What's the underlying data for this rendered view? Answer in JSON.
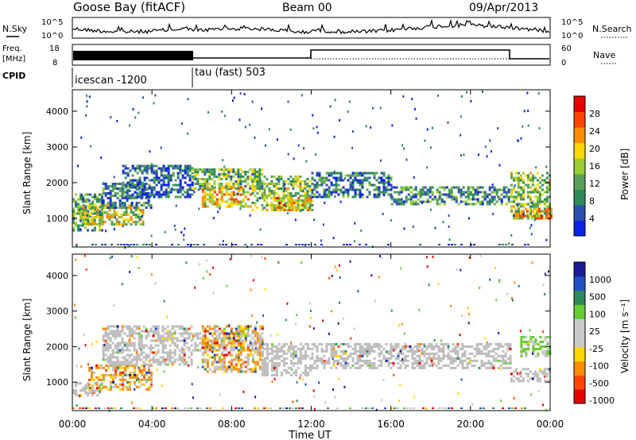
{
  "header": {
    "station": "Goose Bay (fitACF)",
    "beam": "Beam 00",
    "date": "09/Apr/2013"
  },
  "top_panels": {
    "nsky": {
      "left_label": "N.Sky",
      "right_label": "N.Search",
      "left_ticks": [
        "10^5",
        "10^0"
      ],
      "right_ticks": [
        "10^5",
        "10^0"
      ]
    },
    "freq": {
      "left_label_line1": "Freq.",
      "left_label_line2": "[MHz]",
      "right_label": "Nave",
      "left_ticks": [
        "18",
        "8"
      ],
      "right_ticks": [
        "60",
        "0"
      ]
    },
    "cpid": {
      "label": "CPID",
      "segments": [
        "icescan -1200",
        "tau (fast) 503"
      ]
    }
  },
  "colors": {
    "power_scale": [
      "#0a23e6",
      "#2b4fb0",
      "#2e8b57",
      "#5aa05a",
      "#9acd32",
      "#ffd700",
      "#ff8c00",
      "#ff4500",
      "#e60000"
    ],
    "velocity_scale": [
      "#e60000",
      "#ff4500",
      "#ff8c00",
      "#ffd700",
      "#c8c8c8",
      "#c8c8c8",
      "#66cc33",
      "#2e8b57",
      "#1e50c8",
      "#1a1a9a"
    ],
    "ground_scatter": "#bdbdbd"
  },
  "chart_data": [
    {
      "type": "heatmap",
      "panel": "power",
      "xlabel": "",
      "ylabel": "Slant Range [km]",
      "x_ticks": [
        "00:00",
        "04:00",
        "08:00",
        "12:00",
        "16:00",
        "20:00",
        "00:00"
      ],
      "xlim_hours": [
        0,
        24
      ],
      "y_ticks": [
        1000,
        2000,
        3000,
        4000
      ],
      "ylim_km": [
        200,
        4600
      ],
      "colorbar_label": "Power [dB]",
      "colorbar_ticks": [
        "4",
        "8",
        "12",
        "16",
        "20",
        "24",
        "28"
      ],
      "colorbar_range": [
        0,
        32
      ],
      "bands": [
        {
          "t0": 0.0,
          "t1": 1.5,
          "r0": 650,
          "r1": 1700,
          "level": 0.35
        },
        {
          "t0": 0.5,
          "t1": 3.5,
          "r0": 800,
          "r1": 1400,
          "level": 0.55
        },
        {
          "t0": 1.5,
          "t1": 4.0,
          "r0": 1300,
          "r1": 2000,
          "level": 0.25
        },
        {
          "t0": 2.5,
          "t1": 6.0,
          "r0": 1600,
          "r1": 2500,
          "level": 0.2
        },
        {
          "t0": 6.0,
          "t1": 9.5,
          "r0": 1800,
          "r1": 2400,
          "level": 0.4
        },
        {
          "t0": 6.5,
          "t1": 9.0,
          "r0": 1300,
          "r1": 1900,
          "level": 0.65
        },
        {
          "t0": 9.0,
          "t1": 12.0,
          "r0": 1200,
          "r1": 2200,
          "level": 0.45
        },
        {
          "t0": 10.0,
          "t1": 12.0,
          "r0": 1200,
          "r1": 1600,
          "level": 0.7
        },
        {
          "t0": 12.0,
          "t1": 16.0,
          "r0": 1600,
          "r1": 2300,
          "level": 0.25
        },
        {
          "t0": 16.0,
          "t1": 22.0,
          "r0": 1400,
          "r1": 1900,
          "level": 0.3
        },
        {
          "t0": 22.0,
          "t1": 24.0,
          "r0": 1000,
          "r1": 2300,
          "level": 0.45
        },
        {
          "t0": 22.2,
          "t1": 24.0,
          "r0": 1000,
          "r1": 1300,
          "level": 0.7
        }
      ]
    },
    {
      "type": "heatmap",
      "panel": "velocity",
      "xlabel": "Time UT",
      "ylabel": "Slant Range [km]",
      "x_ticks": [
        "00:00",
        "04:00",
        "08:00",
        "12:00",
        "16:00",
        "20:00",
        "00:00"
      ],
      "xlim_hours": [
        0,
        24
      ],
      "y_ticks": [
        1000,
        2000,
        3000,
        4000
      ],
      "ylim_km": [
        200,
        4600
      ],
      "colorbar_label": "Velocity [m s⁻¹]",
      "colorbar_ticks": [
        "1000",
        "500",
        "100",
        "25",
        "-25",
        "-100",
        "-500",
        "-1000"
      ],
      "bands": [
        {
          "t0": 0.0,
          "t1": 1.5,
          "r0": 650,
          "r1": 1000,
          "kind": "gray"
        },
        {
          "t0": 0.8,
          "t1": 4.0,
          "r0": 800,
          "r1": 1500,
          "kind": "mixed"
        },
        {
          "t0": 1.5,
          "t1": 6.0,
          "r0": 1500,
          "r1": 2600,
          "kind": "gray"
        },
        {
          "t0": 6.0,
          "t1": 9.5,
          "r0": 1900,
          "r1": 2400,
          "kind": "gray"
        },
        {
          "t0": 6.5,
          "t1": 9.5,
          "r0": 1300,
          "r1": 2600,
          "kind": "mixed"
        },
        {
          "t0": 9.5,
          "t1": 12.0,
          "r0": 1200,
          "r1": 2100,
          "kind": "gray"
        },
        {
          "t0": 12.0,
          "t1": 22.0,
          "r0": 1400,
          "r1": 2100,
          "kind": "gray"
        },
        {
          "t0": 22.0,
          "t1": 24.0,
          "r0": 1000,
          "r1": 1400,
          "kind": "gray"
        },
        {
          "t0": 22.5,
          "t1": 24.0,
          "r0": 1700,
          "r1": 2300,
          "kind": "green"
        }
      ]
    }
  ]
}
